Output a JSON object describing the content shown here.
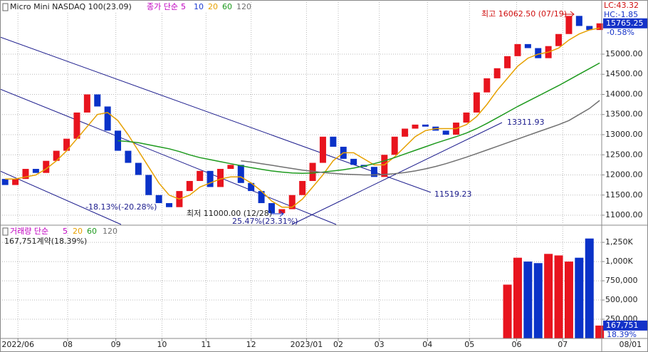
{
  "chart_data": [
    {
      "type": "candlestick",
      "title": "Micro Mini NASDAQ 100(23.09)",
      "ma_label": "종가 단순",
      "ma_legend": [
        {
          "period": 5,
          "color": "#c000c0"
        },
        {
          "period": 10,
          "color": "#1e3cd2"
        },
        {
          "period": 20,
          "color": "#e6a000"
        },
        {
          "period": 60,
          "color": "#1e9a1e"
        },
        {
          "period": 120,
          "color": "#707070"
        }
      ],
      "up_color": "#e8141e",
      "down_color": "#0a32c8",
      "open": [
        11900,
        11750,
        11900,
        12150,
        12050,
        12350,
        12600,
        12900,
        13550,
        14000,
        13700,
        13100,
        12600,
        12300,
        12000,
        11500,
        11300,
        11200,
        11600,
        11850,
        12100,
        11700,
        12150,
        12250,
        11800,
        11600,
        11300,
        11050,
        11150,
        11500,
        11850,
        12300,
        12950,
        12700,
        12400,
        12250,
        12200,
        11950,
        12500,
        12950,
        13150,
        13250,
        13200,
        13100,
        13000,
        13300,
        13550,
        14050,
        14400,
        14650,
        14950,
        15250,
        15150,
        14900,
        15200,
        15500,
        15950,
        15700,
        15600
      ],
      "close": [
        11750,
        11900,
        12150,
        12050,
        12350,
        12600,
        12900,
        13550,
        14000,
        13700,
        13100,
        12600,
        12300,
        12000,
        11500,
        11300,
        11200,
        11600,
        11850,
        12100,
        11700,
        12150,
        12250,
        11800,
        11600,
        11300,
        11050,
        11150,
        11500,
        11850,
        12300,
        12950,
        12700,
        12400,
        12250,
        12200,
        11950,
        12500,
        12950,
        13150,
        13250,
        13200,
        13100,
        13000,
        13300,
        13550,
        14050,
        14400,
        14650,
        14950,
        15250,
        15150,
        14900,
        15200,
        15500,
        15950,
        15700,
        15600,
        15765.25
      ],
      "lines": [
        {
          "period": 20,
          "color": "#e6a000",
          "values": [
            11900,
            11900,
            11950,
            12000,
            12150,
            12350,
            12600,
            12900,
            13200,
            13500,
            13550,
            13350,
            13000,
            12600,
            12200,
            11800,
            11500,
            11400,
            11500,
            11700,
            11800,
            11900,
            11950,
            11950,
            11800,
            11600,
            11350,
            11200,
            11200,
            11400,
            11700,
            12000,
            12350,
            12550,
            12550,
            12400,
            12250,
            12250,
            12450,
            12700,
            12950,
            13100,
            13150,
            13150,
            13150,
            13250,
            13450,
            13750,
            14100,
            14400,
            14700,
            14900,
            15000,
            15050,
            15150,
            15350,
            15500,
            15600,
            15650
          ]
        },
        {
          "period": 60,
          "color": "#1e9a1e",
          "values": [
            null,
            null,
            null,
            null,
            null,
            null,
            null,
            null,
            null,
            null,
            null,
            12850,
            12830,
            12800,
            12750,
            12700,
            12650,
            12580,
            12500,
            12430,
            12380,
            12330,
            12280,
            12230,
            12180,
            12140,
            12100,
            12070,
            12050,
            12040,
            12050,
            12070,
            12100,
            12130,
            12170,
            12220,
            12280,
            12350,
            12430,
            12520,
            12610,
            12700,
            12790,
            12870,
            12950,
            13040,
            13150,
            13280,
            13420,
            13560,
            13700,
            13830,
            13960,
            14090,
            14220,
            14360,
            14500,
            14640,
            14780
          ]
        },
        {
          "period": 120,
          "color": "#707070",
          "values": [
            null,
            null,
            null,
            null,
            null,
            null,
            null,
            null,
            null,
            null,
            null,
            null,
            null,
            null,
            null,
            null,
            null,
            null,
            null,
            null,
            null,
            null,
            null,
            12350,
            12320,
            12280,
            12240,
            12200,
            12160,
            12120,
            12090,
            12060,
            12040,
            12020,
            12010,
            12000,
            12000,
            12010,
            12030,
            12060,
            12100,
            12150,
            12210,
            12280,
            12360,
            12440,
            12530,
            12620,
            12710,
            12800,
            12890,
            12980,
            13070,
            13160,
            13250,
            13350,
            13500,
            13650,
            13850
          ]
        }
      ],
      "xlim": [
        -0.5,
        58.2
      ],
      "xticks": [
        {
          "value": 1.25,
          "label": "2022/06"
        },
        {
          "value": 6.1,
          "label": "08"
        },
        {
          "value": 10.8,
          "label": "09"
        },
        {
          "value": 15.3,
          "label": "10"
        },
        {
          "value": 19.6,
          "label": "11"
        },
        {
          "value": 24,
          "label": "12"
        },
        {
          "value": 29.4,
          "label": "2023/01"
        },
        {
          "value": 32.5,
          "label": "02"
        },
        {
          "value": 36.5,
          "label": "03"
        },
        {
          "value": 41.2,
          "label": "04"
        },
        {
          "value": 45.3,
          "label": "05"
        },
        {
          "value": 49.9,
          "label": "06"
        },
        {
          "value": 54.4,
          "label": "07"
        },
        {
          "value": 61,
          "label": "08/01"
        }
      ],
      "ylim": [
        10770,
        16345
      ],
      "yticks": [
        {
          "value": 11000,
          "label": "11000.00"
        },
        {
          "value": 11500,
          "label": "11500.00"
        },
        {
          "value": 12000,
          "label": "12000.00"
        },
        {
          "value": 12500,
          "label": "12500.00"
        },
        {
          "value": 13000,
          "label": "13000.00"
        },
        {
          "value": 13500,
          "label": "13500.00"
        },
        {
          "value": 14000,
          "label": "14000.00"
        },
        {
          "value": 14500,
          "label": "14500.00"
        },
        {
          "value": 15000,
          "label": "15000.00"
        }
      ],
      "grid": true,
      "last_price": 15765.25,
      "change": "-0.58%",
      "lc": "LC:43.32",
      "hc": "HC:-1.85",
      "annotations": [
        {
          "text": "최고 16062.50 (07/19)"
        },
        {
          "text": "최저 11000.00 (12/28)"
        },
        {
          "text": "13311.93"
        },
        {
          "text": "11519.23"
        },
        {
          "text": "-18.13%(-20.28%)"
        },
        {
          "text": "25.47%(23.31%)"
        }
      ]
    },
    {
      "type": "bar",
      "legend_label": "거래량 단순",
      "ma_legend": [
        {
          "period": 5,
          "color": "#c000c0"
        },
        {
          "period": 20,
          "color": "#e6a000"
        },
        {
          "period": 60,
          "color": "#1e9a1e"
        },
        {
          "period": 120,
          "color": "#707070"
        }
      ],
      "info": "167,751계약(18.39%)",
      "values": [
        null,
        null,
        null,
        null,
        null,
        null,
        null,
        null,
        null,
        null,
        null,
        null,
        null,
        null,
        null,
        null,
        null,
        null,
        null,
        null,
        null,
        null,
        null,
        null,
        null,
        null,
        null,
        null,
        null,
        null,
        null,
        null,
        null,
        null,
        null,
        null,
        null,
        null,
        null,
        null,
        null,
        null,
        null,
        null,
        null,
        null,
        null,
        null,
        null,
        700000,
        1050000,
        1000000,
        980000,
        1100000,
        1080000,
        1000000,
        1050000,
        1300000,
        167751
      ],
      "ylim": [
        0,
        1455000
      ],
      "yticks": [
        {
          "value": 250000,
          "label": "250,000"
        },
        {
          "value": 500000,
          "label": "500,000"
        },
        {
          "value": 750000,
          "label": "750,000"
        },
        {
          "value": 1000000,
          "label": "1,000K"
        },
        {
          "value": 1250000,
          "label": "1,250K"
        }
      ],
      "last_value": {
        "value": 167751,
        "label": "167,751"
      },
      "last_pct": "18.39%"
    }
  ]
}
